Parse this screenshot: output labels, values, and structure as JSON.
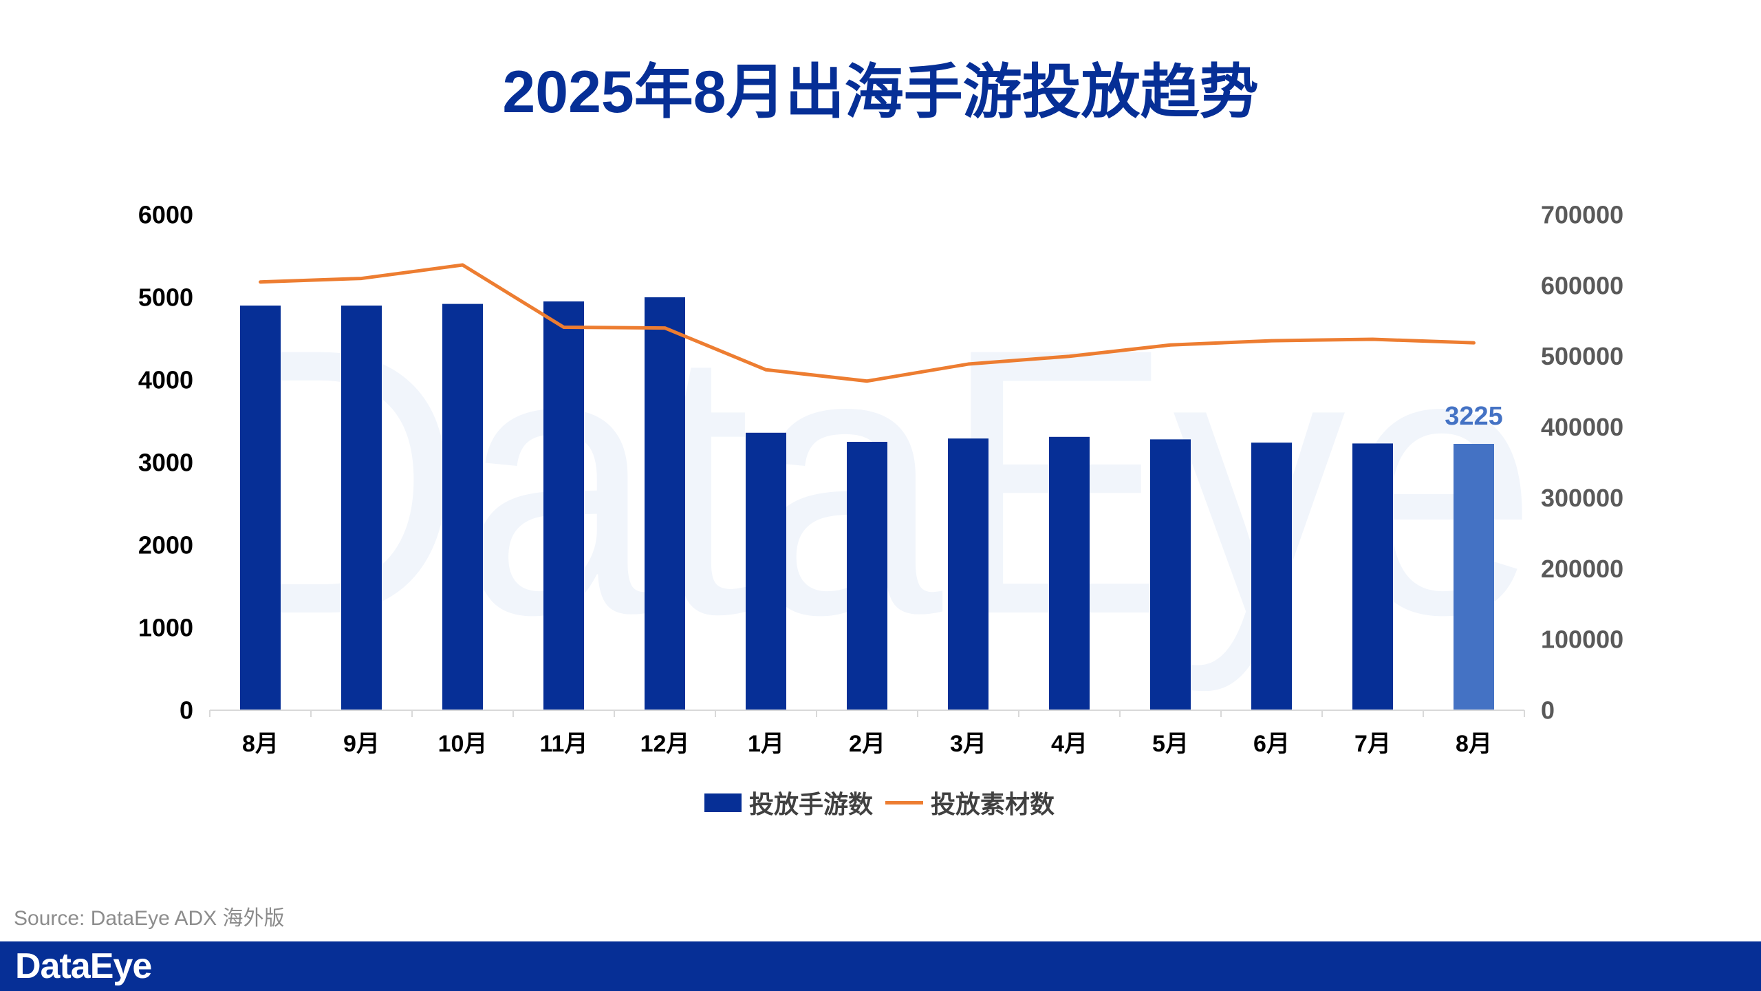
{
  "watermark": "DataEye",
  "source": "Source: DataEye ADX 海外版",
  "footer_logo": "DataEye",
  "colors": {
    "bar": "#062F96",
    "bar_highlight": "#4472C4",
    "line": "#ED7D31",
    "axis": "#D9D9D9"
  },
  "chart_data": {
    "type": "bar",
    "title": "2025年8月出海手游投放趋势",
    "categories": [
      "8月",
      "9月",
      "10月",
      "11月",
      "12月",
      "1月",
      "2月",
      "3月",
      "4月",
      "5月",
      "6月",
      "7月",
      "8月"
    ],
    "series": [
      {
        "name": "投放手游数",
        "type": "bar",
        "axis": "left",
        "values": [
          4900,
          4900,
          4920,
          4950,
          5000,
          3360,
          3250,
          3290,
          3310,
          3280,
          3240,
          3230,
          3225
        ]
      },
      {
        "name": "投放素材数",
        "type": "line",
        "axis": "right",
        "values": [
          605000,
          610000,
          629000,
          541000,
          540000,
          481000,
          465000,
          489000,
          500000,
          516000,
          522000,
          524000,
          519000
        ]
      }
    ],
    "ylim": [
      0,
      6000
    ],
    "y2lim": [
      0,
      700000
    ],
    "y_ticks": [
      "0",
      "1000",
      "2000",
      "3000",
      "4000",
      "5000",
      "6000"
    ],
    "y2_ticks": [
      "0",
      "100000",
      "200000",
      "300000",
      "400000",
      "500000",
      "600000",
      "700000"
    ],
    "data_labels": [
      {
        "series": 0,
        "index": 12,
        "text": "3225"
      }
    ],
    "highlight_index": 12,
    "legend_position": "bottom",
    "grid": false
  }
}
